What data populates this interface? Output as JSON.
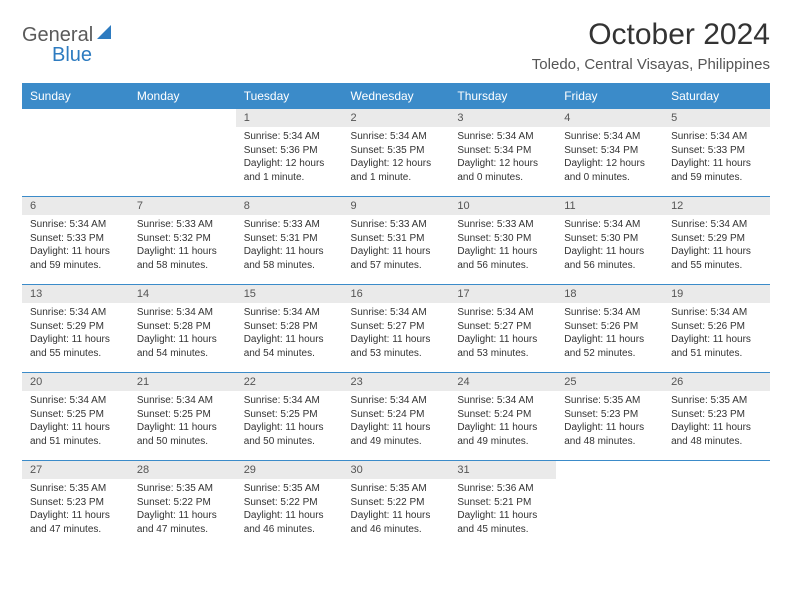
{
  "logo": {
    "text_general": "General",
    "text_blue": "Blue"
  },
  "title": "October 2024",
  "location": "Toledo, Central Visayas, Philippines",
  "colors": {
    "header_bg": "#3b8bc9",
    "header_text": "#ffffff",
    "daynum_bg": "#eaeaea",
    "border": "#3b8bc9",
    "logo_gray": "#5a5a5a",
    "logo_blue": "#2d7bc0",
    "body_text": "#333333",
    "background": "#ffffff"
  },
  "weekdays": [
    "Sunday",
    "Monday",
    "Tuesday",
    "Wednesday",
    "Thursday",
    "Friday",
    "Saturday"
  ],
  "weeks": [
    [
      null,
      null,
      {
        "n": "1",
        "sr": "5:34 AM",
        "ss": "5:36 PM",
        "dl": "12 hours and 1 minute."
      },
      {
        "n": "2",
        "sr": "5:34 AM",
        "ss": "5:35 PM",
        "dl": "12 hours and 1 minute."
      },
      {
        "n": "3",
        "sr": "5:34 AM",
        "ss": "5:34 PM",
        "dl": "12 hours and 0 minutes."
      },
      {
        "n": "4",
        "sr": "5:34 AM",
        "ss": "5:34 PM",
        "dl": "12 hours and 0 minutes."
      },
      {
        "n": "5",
        "sr": "5:34 AM",
        "ss": "5:33 PM",
        "dl": "11 hours and 59 minutes."
      }
    ],
    [
      {
        "n": "6",
        "sr": "5:34 AM",
        "ss": "5:33 PM",
        "dl": "11 hours and 59 minutes."
      },
      {
        "n": "7",
        "sr": "5:33 AM",
        "ss": "5:32 PM",
        "dl": "11 hours and 58 minutes."
      },
      {
        "n": "8",
        "sr": "5:33 AM",
        "ss": "5:31 PM",
        "dl": "11 hours and 58 minutes."
      },
      {
        "n": "9",
        "sr": "5:33 AM",
        "ss": "5:31 PM",
        "dl": "11 hours and 57 minutes."
      },
      {
        "n": "10",
        "sr": "5:33 AM",
        "ss": "5:30 PM",
        "dl": "11 hours and 56 minutes."
      },
      {
        "n": "11",
        "sr": "5:34 AM",
        "ss": "5:30 PM",
        "dl": "11 hours and 56 minutes."
      },
      {
        "n": "12",
        "sr": "5:34 AM",
        "ss": "5:29 PM",
        "dl": "11 hours and 55 minutes."
      }
    ],
    [
      {
        "n": "13",
        "sr": "5:34 AM",
        "ss": "5:29 PM",
        "dl": "11 hours and 55 minutes."
      },
      {
        "n": "14",
        "sr": "5:34 AM",
        "ss": "5:28 PM",
        "dl": "11 hours and 54 minutes."
      },
      {
        "n": "15",
        "sr": "5:34 AM",
        "ss": "5:28 PM",
        "dl": "11 hours and 54 minutes."
      },
      {
        "n": "16",
        "sr": "5:34 AM",
        "ss": "5:27 PM",
        "dl": "11 hours and 53 minutes."
      },
      {
        "n": "17",
        "sr": "5:34 AM",
        "ss": "5:27 PM",
        "dl": "11 hours and 53 minutes."
      },
      {
        "n": "18",
        "sr": "5:34 AM",
        "ss": "5:26 PM",
        "dl": "11 hours and 52 minutes."
      },
      {
        "n": "19",
        "sr": "5:34 AM",
        "ss": "5:26 PM",
        "dl": "11 hours and 51 minutes."
      }
    ],
    [
      {
        "n": "20",
        "sr": "5:34 AM",
        "ss": "5:25 PM",
        "dl": "11 hours and 51 minutes."
      },
      {
        "n": "21",
        "sr": "5:34 AM",
        "ss": "5:25 PM",
        "dl": "11 hours and 50 minutes."
      },
      {
        "n": "22",
        "sr": "5:34 AM",
        "ss": "5:25 PM",
        "dl": "11 hours and 50 minutes."
      },
      {
        "n": "23",
        "sr": "5:34 AM",
        "ss": "5:24 PM",
        "dl": "11 hours and 49 minutes."
      },
      {
        "n": "24",
        "sr": "5:34 AM",
        "ss": "5:24 PM",
        "dl": "11 hours and 49 minutes."
      },
      {
        "n": "25",
        "sr": "5:35 AM",
        "ss": "5:23 PM",
        "dl": "11 hours and 48 minutes."
      },
      {
        "n": "26",
        "sr": "5:35 AM",
        "ss": "5:23 PM",
        "dl": "11 hours and 48 minutes."
      }
    ],
    [
      {
        "n": "27",
        "sr": "5:35 AM",
        "ss": "5:23 PM",
        "dl": "11 hours and 47 minutes."
      },
      {
        "n": "28",
        "sr": "5:35 AM",
        "ss": "5:22 PM",
        "dl": "11 hours and 47 minutes."
      },
      {
        "n": "29",
        "sr": "5:35 AM",
        "ss": "5:22 PM",
        "dl": "11 hours and 46 minutes."
      },
      {
        "n": "30",
        "sr": "5:35 AM",
        "ss": "5:22 PM",
        "dl": "11 hours and 46 minutes."
      },
      {
        "n": "31",
        "sr": "5:36 AM",
        "ss": "5:21 PM",
        "dl": "11 hours and 45 minutes."
      },
      null,
      null
    ]
  ],
  "labels": {
    "sunrise": "Sunrise:",
    "sunset": "Sunset:",
    "daylight": "Daylight:"
  }
}
